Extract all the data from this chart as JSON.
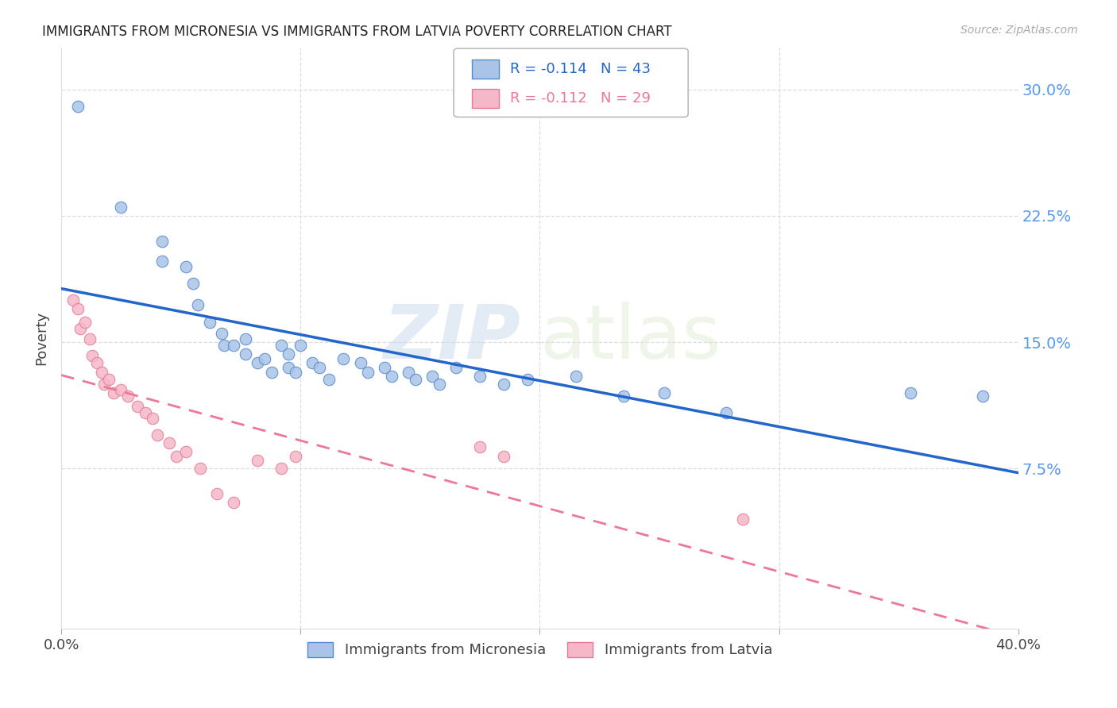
{
  "title": "IMMIGRANTS FROM MICRONESIA VS IMMIGRANTS FROM LATVIA POVERTY CORRELATION CHART",
  "source": "Source: ZipAtlas.com",
  "ylabel": "Poverty",
  "xlim": [
    0.0,
    0.4
  ],
  "ylim": [
    -0.02,
    0.325
  ],
  "watermark_zip": "ZIP",
  "watermark_atlas": "atlas",
  "legend_r1": "R = -0.114",
  "legend_n1": "N = 43",
  "legend_r2": "R = -0.112",
  "legend_n2": "N = 29",
  "color_micronesia_fill": "#aac4e8",
  "color_micronesia_edge": "#5588cc",
  "color_latvia_fill": "#f5b8c8",
  "color_latvia_edge": "#e87898",
  "color_line_micro": "#2266cc",
  "color_line_latvia": "#ee7799",
  "color_right_axis": "#5599ee",
  "micronesia_x": [
    0.007,
    0.025,
    0.042,
    0.042,
    0.052,
    0.055,
    0.057,
    0.062,
    0.067,
    0.068,
    0.072,
    0.077,
    0.077,
    0.082,
    0.085,
    0.088,
    0.092,
    0.095,
    0.095,
    0.098,
    0.1,
    0.105,
    0.108,
    0.112,
    0.118,
    0.125,
    0.128,
    0.135,
    0.138,
    0.145,
    0.148,
    0.155,
    0.158,
    0.165,
    0.175,
    0.185,
    0.195,
    0.215,
    0.235,
    0.252,
    0.278,
    0.355,
    0.385
  ],
  "micronesia_y": [
    0.29,
    0.23,
    0.198,
    0.21,
    0.195,
    0.185,
    0.172,
    0.162,
    0.155,
    0.148,
    0.148,
    0.143,
    0.152,
    0.138,
    0.14,
    0.132,
    0.148,
    0.143,
    0.135,
    0.132,
    0.148,
    0.138,
    0.135,
    0.128,
    0.14,
    0.138,
    0.132,
    0.135,
    0.13,
    0.132,
    0.128,
    0.13,
    0.125,
    0.135,
    0.13,
    0.125,
    0.128,
    0.13,
    0.118,
    0.12,
    0.108,
    0.12,
    0.118
  ],
  "latvia_x": [
    0.005,
    0.007,
    0.008,
    0.01,
    0.012,
    0.013,
    0.015,
    0.017,
    0.018,
    0.02,
    0.022,
    0.025,
    0.028,
    0.032,
    0.035,
    0.038,
    0.04,
    0.045,
    0.048,
    0.052,
    0.058,
    0.065,
    0.072,
    0.082,
    0.092,
    0.098,
    0.175,
    0.185,
    0.285
  ],
  "latvia_y": [
    0.175,
    0.17,
    0.158,
    0.162,
    0.152,
    0.142,
    0.138,
    0.132,
    0.125,
    0.128,
    0.12,
    0.122,
    0.118,
    0.112,
    0.108,
    0.105,
    0.095,
    0.09,
    0.082,
    0.085,
    0.075,
    0.06,
    0.055,
    0.08,
    0.075,
    0.082,
    0.088,
    0.082,
    0.045
  ]
}
